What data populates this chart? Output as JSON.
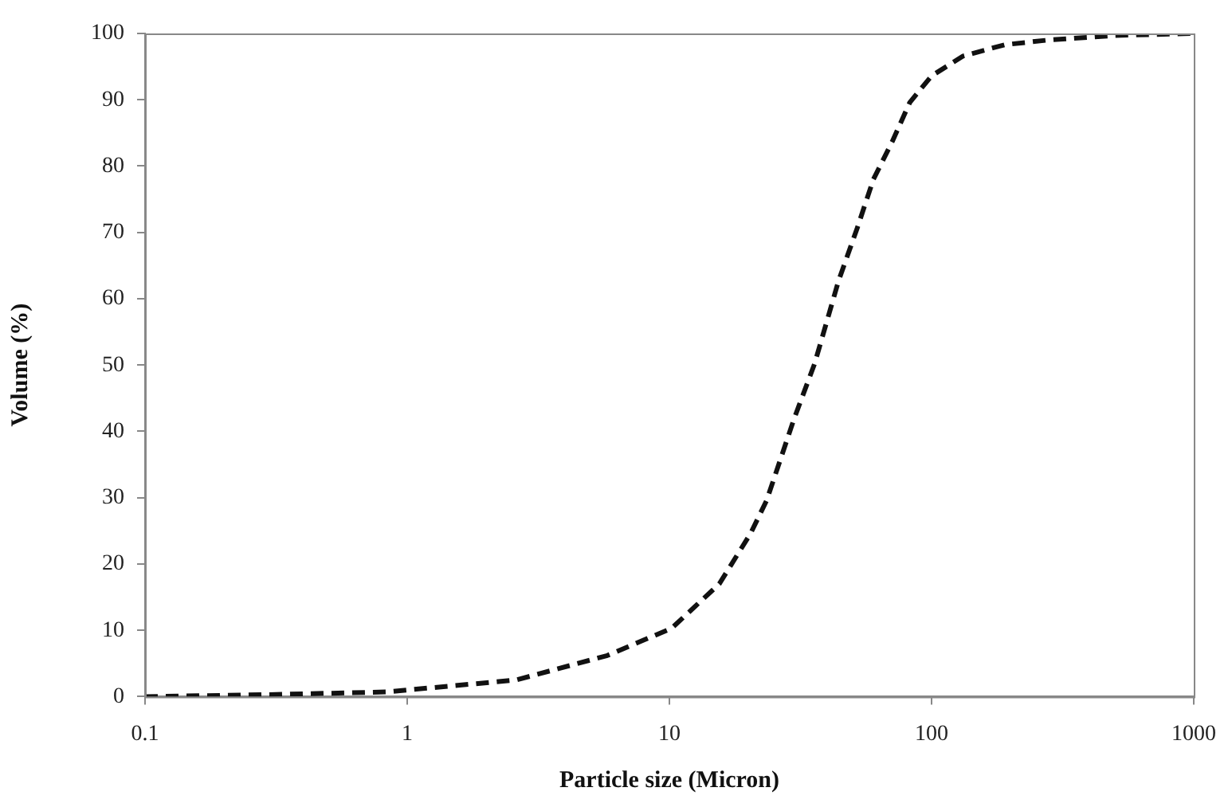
{
  "chart_data": {
    "type": "line",
    "xlabel": "Particle size (Micron)",
    "ylabel": "Volume (%)",
    "x": [
      0.1,
      0.3,
      0.83,
      2.6,
      5.8,
      10.2,
      15.5,
      20.4,
      23.5,
      29.9,
      35.8,
      44.1,
      52.1,
      60,
      70.8,
      82.6,
      100,
      132,
      190,
      277,
      500,
      1000
    ],
    "series": [
      {
        "color": "#111111",
        "values": [
          0,
          0.3,
          0.7,
          2.5,
          6.2,
          10.3,
          17,
          24.6,
          29.6,
          41.9,
          50.2,
          62.6,
          70.7,
          78,
          83.7,
          89.6,
          93.6,
          96.6,
          98.3,
          99,
          99.7,
          100
        ]
      }
    ],
    "xlim": [
      0.1,
      1000
    ],
    "xticks": [
      0.1,
      1,
      10,
      100,
      1000
    ],
    "ylim": [
      0,
      100
    ],
    "yticks": [
      0,
      10,
      20,
      30,
      40,
      50,
      60,
      70,
      80,
      90,
      100
    ],
    "log": "x",
    "grid": false,
    "legend": false,
    "marker": "none",
    "line_style": "dashed"
  }
}
